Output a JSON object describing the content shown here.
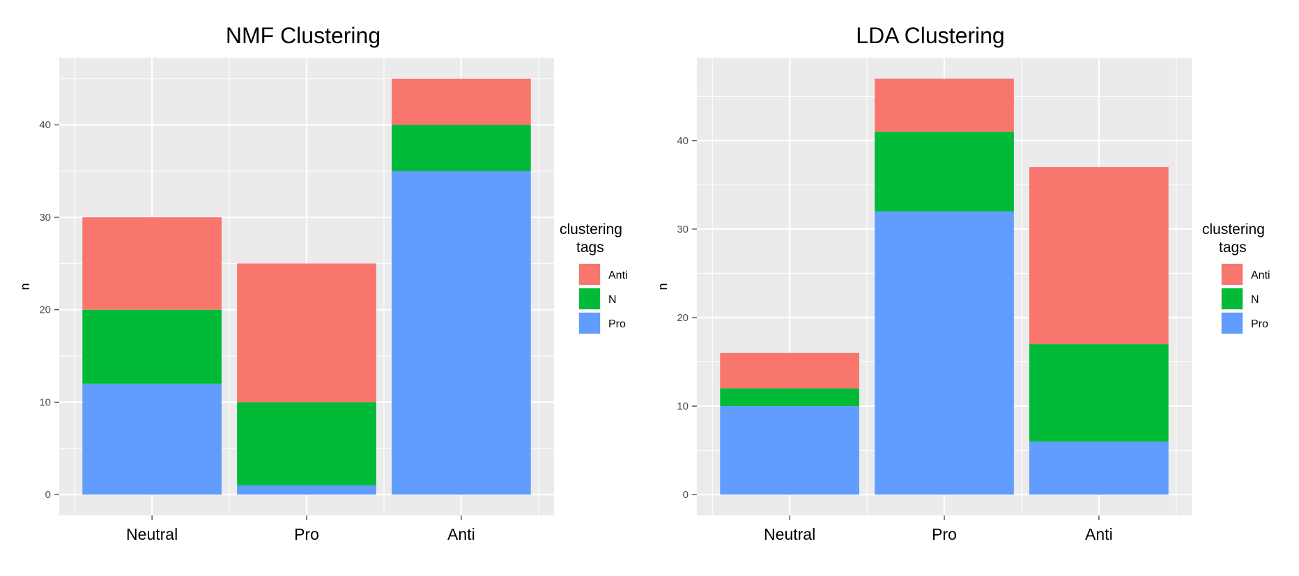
{
  "colors": {
    "panel_bg": "#EBEBEB",
    "grid": "#FFFFFF",
    "axis_text": "#4D4D4D",
    "text": "#000000"
  },
  "chart_data": [
    {
      "type": "bar",
      "stacked": true,
      "title": "NMF Clustering",
      "xlabel": "",
      "ylabel": "n",
      "ylim": [
        -2.25,
        47.25
      ],
      "yticks": [
        0,
        10,
        20,
        30,
        40
      ],
      "categories": [
        "Neutral",
        "Pro",
        "Anti"
      ],
      "legend": {
        "title": "clustering\ntags",
        "placement": "right"
      },
      "series": [
        {
          "name": "Anti",
          "color": "#F8766D",
          "values": [
            10,
            15,
            5
          ]
        },
        {
          "name": "N",
          "color": "#00BA38",
          "values": [
            8,
            9,
            5
          ]
        },
        {
          "name": "Pro",
          "color": "#619CFF",
          "values": [
            12,
            1,
            35
          ]
        }
      ]
    },
    {
      "type": "bar",
      "stacked": true,
      "title": "LDA Clustering",
      "xlabel": "",
      "ylabel": "n",
      "ylim": [
        -2.35,
        49.35
      ],
      "yticks": [
        0,
        10,
        20,
        30,
        40
      ],
      "categories": [
        "Neutral",
        "Pro",
        "Anti"
      ],
      "legend": {
        "title": "clustering\ntags",
        "placement": "right"
      },
      "series": [
        {
          "name": "Anti",
          "color": "#F8766D",
          "values": [
            4,
            6,
            20
          ]
        },
        {
          "name": "N",
          "color": "#00BA38",
          "values": [
            2,
            9,
            11
          ]
        },
        {
          "name": "Pro",
          "color": "#619CFF",
          "values": [
            10,
            32,
            6
          ]
        }
      ]
    }
  ]
}
